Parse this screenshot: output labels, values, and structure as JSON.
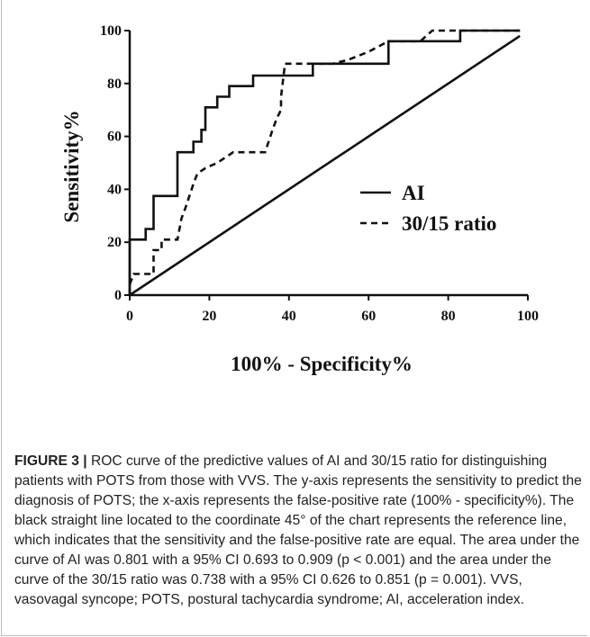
{
  "chart_data": {
    "type": "line",
    "xlabel": "100% - Specificity%",
    "ylabel": "Sensitivity%",
    "xlim": [
      0,
      100
    ],
    "ylim": [
      0,
      100
    ],
    "xticks": [
      "0",
      "20",
      "40",
      "60",
      "80",
      "100"
    ],
    "yticks": [
      "0",
      "20",
      "40",
      "60",
      "80",
      "100"
    ],
    "legend_position": "center-right",
    "series": [
      {
        "name": "AI",
        "style": "solid",
        "color": "#111111",
        "points": [
          [
            0,
            0
          ],
          [
            0,
            21
          ],
          [
            4,
            21
          ],
          [
            4,
            25
          ],
          [
            6,
            25
          ],
          [
            6,
            37.5
          ],
          [
            12,
            37.5
          ],
          [
            12,
            54
          ],
          [
            15,
            54
          ],
          [
            15,
            54
          ],
          [
            16,
            54
          ],
          [
            16,
            58
          ],
          [
            18,
            58
          ],
          [
            18,
            62.5
          ],
          [
            19,
            62.5
          ],
          [
            19,
            71
          ],
          [
            22,
            71
          ],
          [
            22,
            75
          ],
          [
            25,
            75
          ],
          [
            25,
            79
          ],
          [
            28,
            79
          ],
          [
            28,
            79
          ],
          [
            31,
            79
          ],
          [
            31,
            83
          ],
          [
            46,
            83
          ],
          [
            46,
            87.5
          ],
          [
            65,
            87.5
          ],
          [
            65,
            96
          ],
          [
            83,
            96
          ],
          [
            83,
            100
          ],
          [
            98,
            100
          ]
        ]
      },
      {
        "name": "30/15 ratio",
        "style": "dashed",
        "color": "#111111",
        "points": [
          [
            0,
            0
          ],
          [
            0,
            4
          ],
          [
            1,
            8
          ],
          [
            6,
            8
          ],
          [
            6,
            17
          ],
          [
            8,
            17
          ],
          [
            8,
            21
          ],
          [
            12,
            21
          ],
          [
            13,
            29
          ],
          [
            14,
            33
          ],
          [
            15,
            37.5
          ],
          [
            16,
            42
          ],
          [
            17,
            46
          ],
          [
            19,
            48
          ],
          [
            22,
            50
          ],
          [
            26,
            54
          ],
          [
            34,
            54
          ],
          [
            36,
            63
          ],
          [
            37,
            67
          ],
          [
            38,
            70
          ],
          [
            38,
            75
          ],
          [
            39,
            87.5
          ],
          [
            51,
            87.5
          ],
          [
            55,
            89
          ],
          [
            60,
            92
          ],
          [
            65,
            96
          ],
          [
            73,
            96
          ],
          [
            76,
            100
          ],
          [
            98,
            100
          ]
        ]
      },
      {
        "name": "reference",
        "style": "solid",
        "color": "#111111",
        "points": [
          [
            0,
            0
          ],
          [
            98,
            98
          ]
        ]
      }
    ]
  },
  "caption": {
    "label": "FIGURE 3 |",
    "text": " ROC curve of the predictive values of AI and 30/15 ratio for distinguishing patients with POTS from those with VVS. The y-axis represents the sensitivity to predict the diagnosis of POTS; the x-axis represents the false-positive rate (100% - specificity%). The black straight line located to the coordinate 45° of the chart represents the reference line, which indicates that the sensitivity and the false-positive rate are equal. The area under the curve of AI was 0.801 with a 95% CI 0.693 to 0.909 (p < 0.001) and the area under the curve of the 30/15 ratio was 0.738 with a 95% CI 0.626 to 0.851 (p = 0.001). VVS, vasovagal syncope; POTS, postural tachycardia syndrome; AI, acceleration index."
  }
}
